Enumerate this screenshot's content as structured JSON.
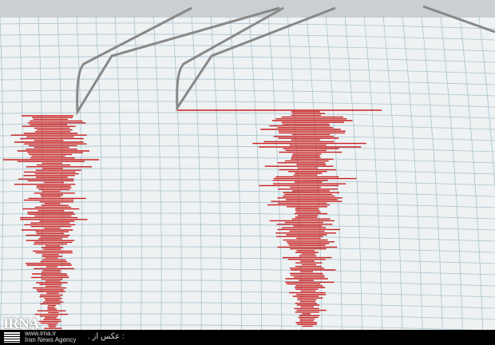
{
  "watermark": {
    "logo": "IRNA",
    "url": "www.irna.ir",
    "agency": "Iran News Agency",
    "credit": ": عکس از ."
  },
  "colors": {
    "paper": "#eef2f3",
    "grid": "#a9c3cf",
    "trace": "#c81e1e"
  }
}
